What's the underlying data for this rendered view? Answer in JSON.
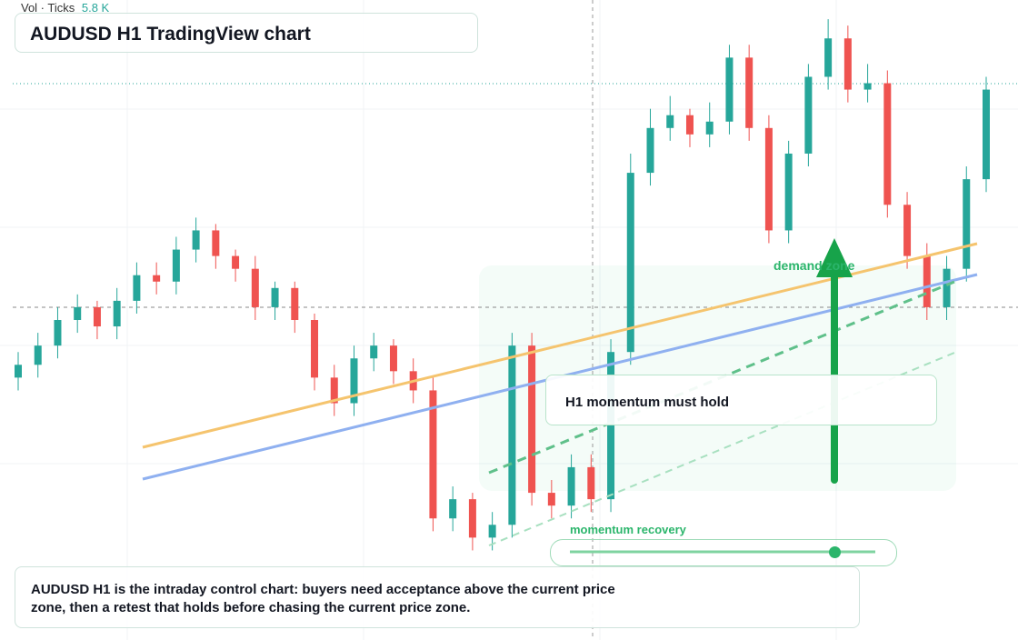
{
  "chart_data": {
    "type": "candlestick",
    "title": "AUDUSD H1 TradingView chart",
    "volume_label": "Vol · Ticks",
    "volume_value": "5.8 K",
    "zone_label": "demand zone",
    "callout": "H1 momentum must hold",
    "progress_label": "momentum recovery",
    "summary": "AUDUSD H1 is the intraday control chart: buyers need acceptance above the current price zone, then a retest that holds before chasing the current price zone.",
    "up_color": "#26a69a",
    "down_color": "#ef5350",
    "ylim": [
      0,
      100
    ],
    "open": [
      41,
      43,
      46,
      50,
      52,
      49,
      53,
      57,
      56,
      61,
      64,
      60,
      58,
      52,
      55,
      50,
      41,
      37,
      44,
      46,
      42,
      39,
      19,
      22,
      16,
      18,
      46,
      23,
      21,
      27,
      22,
      45,
      73,
      80,
      82,
      79,
      81,
      91,
      80,
      64,
      76,
      88,
      94,
      86,
      87,
      68,
      60,
      52,
      58,
      72
    ],
    "high": [
      45,
      48,
      52,
      54,
      53,
      55,
      59,
      59,
      63,
      66,
      65,
      61,
      60,
      56,
      56,
      51,
      43,
      46,
      48,
      47,
      44,
      41,
      24,
      23,
      20,
      48,
      48,
      25,
      29,
      29,
      47,
      76,
      83,
      85,
      83,
      84,
      93,
      93,
      82,
      78,
      90,
      97,
      96,
      90,
      89,
      70,
      62,
      60,
      74,
      88
    ],
    "low": [
      39,
      41,
      44,
      48,
      47,
      47,
      51,
      54,
      54,
      59,
      58,
      56,
      50,
      50,
      48,
      39,
      35,
      35,
      42,
      40,
      37,
      17,
      17,
      14,
      14,
      16,
      21,
      19,
      19,
      20,
      20,
      43,
      71,
      78,
      77,
      77,
      79,
      78,
      62,
      62,
      74,
      86,
      84,
      84,
      66,
      58,
      50,
      50,
      56,
      70
    ],
    "close": [
      43,
      46,
      50,
      52,
      49,
      53,
      57,
      56,
      61,
      64,
      60,
      58,
      52,
      55,
      50,
      41,
      37,
      44,
      46,
      42,
      39,
      19,
      22,
      16,
      18,
      46,
      23,
      21,
      27,
      22,
      45,
      73,
      80,
      82,
      79,
      81,
      91,
      80,
      64,
      76,
      88,
      94,
      86,
      87,
      68,
      60,
      52,
      58,
      72,
      86
    ]
  }
}
